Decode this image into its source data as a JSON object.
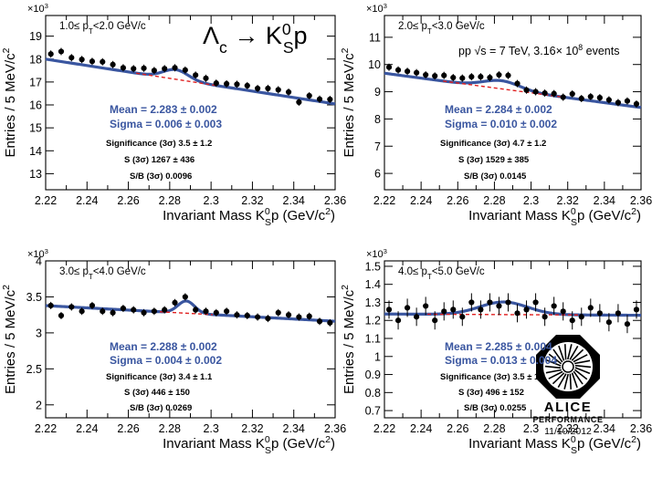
{
  "figure": {
    "process": "Λc → K0Sp",
    "collision": "pp √s = 7 TeV, 3.16× 10^8 events",
    "logo": {
      "name": "ALICE",
      "sub": "PERFORMANCE",
      "date": "11/10/2012"
    },
    "colors": {
      "fit": "#3a56a0",
      "background_fit": "#e02020",
      "markers": "#000000"
    }
  },
  "chart_data": [
    {
      "type": "scatter",
      "pt_range": "1.0≤ pT<2.0 GeV/c",
      "xlabel": "Invariant Mass K0Sp (GeV/c2)",
      "ylabel": "Entries / 5 MeV/c2",
      "multiplier": "×10^3",
      "xlim": [
        2.22,
        2.36
      ],
      "ylim": [
        12.3,
        19.9
      ],
      "xticks": [
        2.22,
        2.24,
        2.26,
        2.28,
        2.3,
        2.32,
        2.34,
        2.36
      ],
      "yticks": [
        13,
        14,
        15,
        16,
        17,
        18,
        19
      ],
      "x": [
        2.2225,
        2.2275,
        2.2325,
        2.2375,
        2.2425,
        2.2475,
        2.2525,
        2.2575,
        2.2625,
        2.2675,
        2.2725,
        2.2775,
        2.2825,
        2.2875,
        2.2925,
        2.2975,
        2.3025,
        2.3075,
        2.3125,
        2.3175,
        2.3225,
        2.3275,
        2.3325,
        2.3375,
        2.3425,
        2.3475,
        2.3525,
        2.3575
      ],
      "y": [
        18.22,
        18.33,
        18.06,
        17.98,
        17.9,
        17.88,
        17.76,
        17.62,
        17.58,
        17.6,
        17.5,
        17.58,
        17.62,
        17.52,
        17.3,
        17.16,
        16.95,
        16.92,
        16.9,
        16.84,
        16.72,
        16.72,
        16.66,
        16.56,
        16.12,
        16.4,
        16.25,
        16.24
      ],
      "fit": {
        "A": 17.02,
        "b": -13.95,
        "x0": 2.29,
        "mu": 2.283,
        "sigma": 0.006,
        "N": 0.42
      },
      "labels": {
        "mean": "Mean = 2.283 ± 0.002",
        "sigma": "Sigma = 0.006 ± 0.003",
        "significance": "Significance (3σ) 3.5 ± 1.2",
        "signal": "S (3σ) 1267 ± 436",
        "sb": "S/B (3σ) 0.0096"
      }
    },
    {
      "type": "scatter",
      "pt_range": "2.0≤ pT<3.0 GeV/c",
      "xlabel": "Invariant Mass K0Sp (GeV/c2)",
      "ylabel": "Entries / 5 MeV/c2",
      "multiplier": "×10^3",
      "xlim": [
        2.22,
        2.36
      ],
      "ylim": [
        5.4,
        11.8
      ],
      "xticks": [
        2.22,
        2.24,
        2.26,
        2.28,
        2.3,
        2.32,
        2.34,
        2.36
      ],
      "yticks": [
        6,
        7,
        8,
        9,
        10,
        11
      ],
      "x": [
        2.2225,
        2.2275,
        2.2325,
        2.2375,
        2.2425,
        2.2475,
        2.2525,
        2.2575,
        2.2625,
        2.2675,
        2.2725,
        2.2775,
        2.2825,
        2.2875,
        2.2925,
        2.2975,
        2.3025,
        2.3075,
        2.3125,
        2.3175,
        2.3225,
        2.3275,
        2.3325,
        2.3375,
        2.3425,
        2.3475,
        2.3525,
        2.3575
      ],
      "y": [
        9.9,
        9.8,
        9.75,
        9.7,
        9.62,
        9.58,
        9.6,
        9.52,
        9.5,
        9.55,
        9.55,
        9.52,
        9.62,
        9.6,
        9.3,
        9.06,
        9.0,
        8.95,
        8.93,
        8.8,
        8.92,
        8.75,
        8.82,
        8.78,
        8.7,
        8.6,
        8.66,
        8.55
      ],
      "fit": {
        "A": 9.05,
        "b": -9.0,
        "x0": 2.29,
        "mu": 2.284,
        "sigma": 0.01,
        "N": 0.3
      },
      "labels": {
        "mean": "Mean = 2.284 ± 0.002",
        "sigma": "Sigma = 0.010 ± 0.002",
        "significance": "Significance (3σ) 4.7 ± 1.2",
        "signal": "S (3σ) 1529 ± 385",
        "sb": "S/B (3σ) 0.0145"
      }
    },
    {
      "type": "scatter",
      "pt_range": "3.0≤ pT<4.0 GeV/c",
      "xlabel": "Invariant Mass K0Sp (GeV/c2)",
      "ylabel": "Entries / 5 MeV/c2",
      "multiplier": "×10^3",
      "xlim": [
        2.22,
        2.36
      ],
      "ylim": [
        1.82,
        4.0
      ],
      "xticks": [
        2.22,
        2.24,
        2.26,
        2.28,
        2.3,
        2.32,
        2.34,
        2.36
      ],
      "yticks": [
        2,
        2.5,
        3,
        3.5,
        4
      ],
      "x": [
        2.2225,
        2.2275,
        2.2325,
        2.2375,
        2.2425,
        2.2475,
        2.2525,
        2.2575,
        2.2625,
        2.2675,
        2.2725,
        2.2775,
        2.2825,
        2.2875,
        2.2925,
        2.2975,
        2.3025,
        2.3075,
        2.3125,
        2.3175,
        2.3225,
        2.3275,
        2.3325,
        2.3375,
        2.3425,
        2.3475,
        2.3525,
        2.3575
      ],
      "y": [
        3.38,
        3.24,
        3.36,
        3.3,
        3.38,
        3.3,
        3.28,
        3.34,
        3.32,
        3.28,
        3.3,
        3.32,
        3.42,
        3.5,
        3.32,
        3.3,
        3.28,
        3.3,
        3.25,
        3.24,
        3.22,
        3.2,
        3.28,
        3.25,
        3.22,
        3.23,
        3.16,
        3.14
      ],
      "fit": {
        "A": 3.27,
        "b": -1.55,
        "x0": 2.29,
        "mu": 2.288,
        "sigma": 0.004,
        "N": 0.17
      },
      "labels": {
        "mean": "Mean = 2.288 ± 0.002",
        "sigma": "Sigma = 0.004 ± 0.002",
        "significance": "Significance (3σ) 3.4 ± 1.1",
        "signal": "S (3σ) 446 ± 150",
        "sb": "S/B (3σ) 0.0269"
      }
    },
    {
      "type": "scatter",
      "pt_range": "4.0≤ pT<5.0 GeV/c",
      "xlabel": "Invariant Mass K0Sp (GeV/c2)",
      "ylabel": "Entries / 5 MeV/c2",
      "multiplier": "×10^3",
      "xlim": [
        2.22,
        2.36
      ],
      "ylim": [
        0.66,
        1.53
      ],
      "xticks": [
        2.22,
        2.24,
        2.26,
        2.28,
        2.3,
        2.32,
        2.34,
        2.36
      ],
      "yticks": [
        0.7,
        0.8,
        0.9,
        1,
        1.1,
        1.2,
        1.3,
        1.4,
        1.5
      ],
      "x": [
        2.2225,
        2.2275,
        2.2325,
        2.2375,
        2.2425,
        2.2475,
        2.2525,
        2.2575,
        2.2625,
        2.2675,
        2.2725,
        2.2775,
        2.2825,
        2.2875,
        2.2925,
        2.2975,
        2.3025,
        2.3075,
        2.3125,
        2.3175,
        2.3225,
        2.3275,
        2.3325,
        2.3375,
        2.3425,
        2.3475,
        2.3525,
        2.3575
      ],
      "y": [
        1.26,
        1.2,
        1.27,
        1.22,
        1.28,
        1.2,
        1.25,
        1.26,
        1.22,
        1.3,
        1.26,
        1.3,
        1.28,
        1.3,
        1.24,
        1.26,
        1.3,
        1.22,
        1.28,
        1.25,
        1.2,
        1.22,
        1.27,
        1.24,
        1.19,
        1.24,
        1.18,
        1.26
      ],
      "fit": {
        "A": 1.232,
        "b": -0.05,
        "x0": 2.29,
        "mu": 2.285,
        "sigma": 0.013,
        "N": 0.07
      },
      "labels": {
        "mean": "Mean = 2.285 ± 0.004",
        "sigma": "Sigma = 0.013 ± 0.004",
        "significance": "Significance (3σ) 3.5 ± 1.1",
        "signal": "S (3σ) 496 ± 152",
        "sb": "S/B (3σ) 0.0255"
      }
    }
  ]
}
